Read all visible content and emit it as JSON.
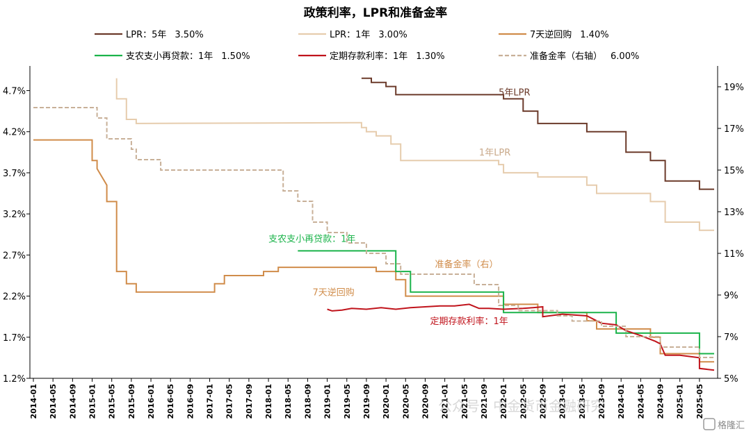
{
  "chart_data": {
    "type": "line",
    "title": "政策利率，LPR和准备金率",
    "left_axis": {
      "ylim": [
        1.2,
        5.0
      ],
      "ticks": [
        "4.7%",
        "4.2%",
        "3.7%",
        "3.2%",
        "2.7%",
        "2.2%",
        "1.7%",
        "1.2%"
      ],
      "tick_values": [
        4.7,
        4.2,
        3.7,
        3.2,
        2.7,
        2.2,
        1.7,
        1.2
      ]
    },
    "right_axis": {
      "ylim": [
        5,
        20
      ],
      "ticks": [
        "19%",
        "17%",
        "15%",
        "13%",
        "11%",
        "9%",
        "7%",
        "5%"
      ],
      "tick_values": [
        19,
        17,
        15,
        13,
        11,
        9,
        7,
        5
      ]
    },
    "x_ticks": [
      "2014-01",
      "2014-05",
      "2014-09",
      "2015-01",
      "2015-05",
      "2015-09",
      "2016-01",
      "2016-05",
      "2016-09",
      "2017-01",
      "2017-05",
      "2017-09",
      "2018-01",
      "2018-05",
      "2018-09",
      "2019-01",
      "2019-05",
      "2019-09",
      "2020-01",
      "2020-05",
      "2020-09",
      "2021-01",
      "2021-05",
      "2021-09",
      "2022-01",
      "2022-05",
      "2022-09",
      "2023-01",
      "2023-05",
      "2023-09",
      "2024-01",
      "2024-05",
      "2024-09",
      "2025-01",
      "2025-05"
    ],
    "x_range": [
      "2014-01",
      "2025-08"
    ],
    "grid": false,
    "legend_position": "top",
    "series": [
      {
        "name": "LPR：5年",
        "legend_value": "3.50%",
        "axis": "left",
        "color": "#6b3a2a",
        "dash": false,
        "points": [
          [
            "2019-08",
            4.85
          ],
          [
            "2019-10",
            4.85
          ],
          [
            "2019-10",
            4.8
          ],
          [
            "2020-01",
            4.8
          ],
          [
            "2020-01",
            4.75
          ],
          [
            "2020-03",
            4.75
          ],
          [
            "2020-03",
            4.65
          ],
          [
            "2022-01",
            4.65
          ],
          [
            "2022-01",
            4.6
          ],
          [
            "2022-05",
            4.6
          ],
          [
            "2022-05",
            4.45
          ],
          [
            "2022-08",
            4.45
          ],
          [
            "2022-08",
            4.3
          ],
          [
            "2023-06",
            4.3
          ],
          [
            "2023-06",
            4.2
          ],
          [
            "2024-02",
            4.2
          ],
          [
            "2024-02",
            3.95
          ],
          [
            "2024-07",
            3.95
          ],
          [
            "2024-07",
            3.85
          ],
          [
            "2024-10",
            3.85
          ],
          [
            "2024-10",
            3.6
          ],
          [
            "2025-05",
            3.6
          ],
          [
            "2025-05",
            3.5
          ],
          [
            "2025-08",
            3.5
          ]
        ]
      },
      {
        "name": "LPR：1年",
        "legend_value": "3.00%",
        "axis": "left",
        "color": "#e6ccad",
        "dash": false,
        "points": [
          [
            "2015-06",
            4.85
          ],
          [
            "2015-06",
            4.6
          ],
          [
            "2015-08",
            4.6
          ],
          [
            "2015-08",
            4.35
          ],
          [
            "2015-10",
            4.35
          ],
          [
            "2015-10",
            4.3
          ],
          [
            "2019-08",
            4.31
          ],
          [
            "2019-08",
            4.25
          ],
          [
            "2019-09",
            4.25
          ],
          [
            "2019-09",
            4.2
          ],
          [
            "2019-11",
            4.2
          ],
          [
            "2019-11",
            4.15
          ],
          [
            "2020-02",
            4.15
          ],
          [
            "2020-02",
            4.05
          ],
          [
            "2020-04",
            4.05
          ],
          [
            "2020-04",
            3.85
          ],
          [
            "2021-12",
            3.85
          ],
          [
            "2021-12",
            3.8
          ],
          [
            "2022-01",
            3.8
          ],
          [
            "2022-01",
            3.7
          ],
          [
            "2022-08",
            3.7
          ],
          [
            "2022-08",
            3.65
          ],
          [
            "2023-06",
            3.65
          ],
          [
            "2023-06",
            3.55
          ],
          [
            "2023-08",
            3.55
          ],
          [
            "2023-08",
            3.45
          ],
          [
            "2024-07",
            3.45
          ],
          [
            "2024-07",
            3.35
          ],
          [
            "2024-10",
            3.35
          ],
          [
            "2024-10",
            3.1
          ],
          [
            "2025-05",
            3.1
          ],
          [
            "2025-05",
            3.0
          ],
          [
            "2025-08",
            3.0
          ]
        ]
      },
      {
        "name": "7天逆回购",
        "legend_value": "1.40%",
        "axis": "left",
        "color": "#d08c4a",
        "dash": false,
        "points": [
          [
            "2014-01",
            4.1
          ],
          [
            "2015-01",
            4.1
          ],
          [
            "2015-01",
            3.85
          ],
          [
            "2015-02",
            3.85
          ],
          [
            "2015-02",
            3.75
          ],
          [
            "2015-03",
            3.65
          ],
          [
            "2015-04",
            3.55
          ],
          [
            "2015-04",
            3.35
          ],
          [
            "2015-06",
            3.35
          ],
          [
            "2015-06",
            2.7
          ],
          [
            "2015-06",
            2.5
          ],
          [
            "2015-08",
            2.5
          ],
          [
            "2015-08",
            2.35
          ],
          [
            "2015-10",
            2.35
          ],
          [
            "2015-10",
            2.25
          ],
          [
            "2017-02",
            2.25
          ],
          [
            "2017-02",
            2.35
          ],
          [
            "2017-04",
            2.35
          ],
          [
            "2017-04",
            2.45
          ],
          [
            "2017-12",
            2.45
          ],
          [
            "2017-12",
            2.5
          ],
          [
            "2018-03",
            2.5
          ],
          [
            "2018-03",
            2.55
          ],
          [
            "2019-11",
            2.55
          ],
          [
            "2019-11",
            2.5
          ],
          [
            "2020-03",
            2.5
          ],
          [
            "2020-03",
            2.4
          ],
          [
            "2020-05",
            2.4
          ],
          [
            "2020-05",
            2.2
          ],
          [
            "2022-01",
            2.2
          ],
          [
            "2022-01",
            2.1
          ],
          [
            "2022-08",
            2.1
          ],
          [
            "2022-08",
            2.0
          ],
          [
            "2023-06",
            2.0
          ],
          [
            "2023-06",
            1.9
          ],
          [
            "2023-08",
            1.9
          ],
          [
            "2023-08",
            1.8
          ],
          [
            "2024-07",
            1.8
          ],
          [
            "2024-07",
            1.7
          ],
          [
            "2024-09",
            1.7
          ],
          [
            "2024-09",
            1.5
          ],
          [
            "2025-05",
            1.5
          ],
          [
            "2025-05",
            1.4
          ],
          [
            "2025-08",
            1.4
          ]
        ]
      },
      {
        "name": "支农支小再贷款：1年",
        "legend_value": "1.50%",
        "axis": "left",
        "color": "#1ab34a",
        "dash": false,
        "points": [
          [
            "2018-07",
            2.75
          ],
          [
            "2020-03",
            2.75
          ],
          [
            "2020-03",
            2.5
          ],
          [
            "2020-06",
            2.5
          ],
          [
            "2020-06",
            2.25
          ],
          [
            "2022-01",
            2.25
          ],
          [
            "2022-01",
            2.0
          ],
          [
            "2023-12",
            2.0
          ],
          [
            "2023-12",
            1.75
          ],
          [
            "2025-05",
            1.75
          ],
          [
            "2025-05",
            1.5
          ],
          [
            "2025-08",
            1.5
          ]
        ]
      },
      {
        "name": "定期存款利率：1年",
        "legend_value": "1.30%",
        "axis": "left",
        "color": "#c0131b",
        "dash": false,
        "points": [
          [
            "2019-01",
            2.04
          ],
          [
            "2019-02",
            2.02
          ],
          [
            "2019-04",
            2.03
          ],
          [
            "2019-06",
            2.05
          ],
          [
            "2019-09",
            2.04
          ],
          [
            "2019-12",
            2.06
          ],
          [
            "2020-03",
            2.04
          ],
          [
            "2020-06",
            2.06
          ],
          [
            "2020-09",
            2.07
          ],
          [
            "2020-12",
            2.08
          ],
          [
            "2021-03",
            2.08
          ],
          [
            "2021-06",
            2.1
          ],
          [
            "2021-08",
            2.05
          ],
          [
            "2021-10",
            2.05
          ],
          [
            "2022-01",
            2.04
          ],
          [
            "2022-05",
            2.05
          ],
          [
            "2022-07",
            2.06
          ],
          [
            "2022-09",
            2.07
          ],
          [
            "2022-09",
            1.95
          ],
          [
            "2023-01",
            1.98
          ],
          [
            "2023-06",
            1.96
          ],
          [
            "2023-09",
            1.87
          ],
          [
            "2023-12",
            1.85
          ],
          [
            "2024-02",
            1.78
          ],
          [
            "2024-05",
            1.72
          ],
          [
            "2024-08",
            1.65
          ],
          [
            "2024-09",
            1.62
          ],
          [
            "2024-10",
            1.48
          ],
          [
            "2025-01",
            1.48
          ],
          [
            "2025-05",
            1.45
          ],
          [
            "2025-05",
            1.32
          ],
          [
            "2025-08",
            1.3
          ]
        ]
      },
      {
        "name": "准备金率（右轴）",
        "legend_value": "6.00%",
        "axis": "right",
        "color": "#c8b098",
        "dash": true,
        "points": [
          [
            "2014-01",
            18.0
          ],
          [
            "2015-02",
            18.0
          ],
          [
            "2015-02",
            17.5
          ],
          [
            "2015-04",
            17.5
          ],
          [
            "2015-04",
            16.5
          ],
          [
            "2015-09",
            16.5
          ],
          [
            "2015-09",
            16.0
          ],
          [
            "2015-10",
            16.0
          ],
          [
            "2015-10",
            15.5
          ],
          [
            "2016-03",
            15.5
          ],
          [
            "2016-03",
            15.0
          ],
          [
            "2018-04",
            15.0
          ],
          [
            "2018-04",
            14.0
          ],
          [
            "2018-07",
            14.0
          ],
          [
            "2018-07",
            13.5
          ],
          [
            "2018-10",
            13.5
          ],
          [
            "2018-10",
            12.5
          ],
          [
            "2019-01",
            12.5
          ],
          [
            "2019-01",
            12.0
          ],
          [
            "2019-05",
            12.0
          ],
          [
            "2019-05",
            11.5
          ],
          [
            "2019-09",
            11.5
          ],
          [
            "2019-09",
            11.0
          ],
          [
            "2020-01",
            11.0
          ],
          [
            "2020-01",
            10.5
          ],
          [
            "2020-04",
            10.5
          ],
          [
            "2020-04",
            10.0
          ],
          [
            "2021-07",
            10.0
          ],
          [
            "2021-07",
            9.5
          ],
          [
            "2021-12",
            9.5
          ],
          [
            "2021-12",
            8.5
          ],
          [
            "2022-04",
            8.5
          ],
          [
            "2022-04",
            8.25
          ],
          [
            "2022-12",
            8.25
          ],
          [
            "2022-12",
            8.0
          ],
          [
            "2023-03",
            8.0
          ],
          [
            "2023-03",
            7.75
          ],
          [
            "2023-09",
            7.75
          ],
          [
            "2023-09",
            7.5
          ],
          [
            "2024-02",
            7.5
          ],
          [
            "2024-02",
            7.0
          ],
          [
            "2024-09",
            7.0
          ],
          [
            "2024-09",
            6.5
          ],
          [
            "2025-05",
            6.5
          ],
          [
            "2025-05",
            6.0
          ],
          [
            "2025-08",
            6.0
          ]
        ]
      }
    ],
    "annotations": [
      {
        "text": "5年LPR",
        "color": "#6b3a2a",
        "x": "2021-12",
        "y": 4.64
      },
      {
        "text": "1年LPR",
        "color": "#c9a98a",
        "x": "2021-08",
        "y": 3.91
      },
      {
        "text": "支农支小再贷款：1年",
        "color": "#1ab34a",
        "x": "2018-01",
        "y": 2.86
      },
      {
        "text": "准备金率（右）",
        "color": "#d08c4a",
        "x": "2020-11",
        "y": 2.55
      },
      {
        "text": "7天逆回购",
        "color": "#d08c4a",
        "x": "2018-10",
        "y": 2.21
      },
      {
        "text": "定期存款利率：1年",
        "color": "#c0131b",
        "x": "2020-10",
        "y": 1.86
      }
    ]
  },
  "watermark": {
    "text": "公众号 · 中金货币金融研究",
    "logo": "格隆汇"
  }
}
